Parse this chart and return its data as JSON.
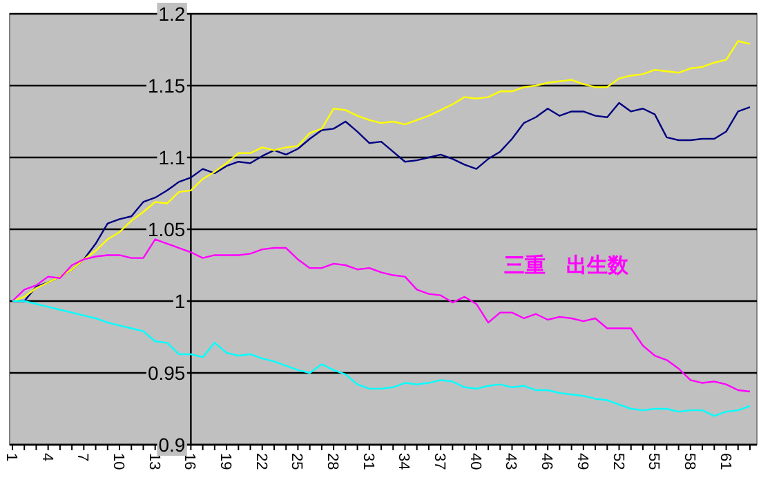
{
  "chart_data": {
    "type": "line",
    "categories": [
      "1",
      null,
      null,
      "4",
      null,
      null,
      "7",
      null,
      null,
      "10",
      null,
      null,
      "13",
      null,
      null,
      "16",
      null,
      null,
      "19",
      null,
      null,
      "22",
      null,
      null,
      "25",
      null,
      null,
      "28",
      null,
      null,
      "31",
      null,
      null,
      "34",
      null,
      null,
      "37",
      null,
      null,
      "40",
      null,
      null,
      "43",
      null,
      null,
      "46",
      null,
      null,
      "49",
      null,
      null,
      "52",
      null,
      null,
      "55",
      null,
      null,
      "58",
      null,
      null,
      "61",
      null,
      null
    ],
    "series": [
      {
        "color": "#000080",
        "values": [
          1.0,
          1.0,
          1.01,
          1.013,
          1.017,
          1.022,
          1.029,
          1.04,
          1.054,
          1.057,
          1.059,
          1.069,
          1.072,
          1.077,
          1.083,
          1.086,
          1.092,
          1.089,
          1.094,
          1.097,
          1.096,
          1.101,
          1.105,
          1.102,
          1.106,
          1.113,
          1.119,
          1.12,
          1.125,
          1.118,
          1.11,
          1.111,
          1.104,
          1.097,
          1.098,
          1.1,
          1.102,
          1.099,
          1.095,
          1.092,
          1.099,
          1.104,
          1.113,
          1.124,
          1.128,
          1.134,
          1.129,
          1.132,
          1.132,
          1.129,
          1.128,
          1.138,
          1.132,
          1.134,
          1.13,
          1.114,
          1.112,
          1.112,
          1.113,
          1.113,
          1.118,
          1.132,
          1.135
        ]
      },
      {
        "color": "#ffff00",
        "values": [
          1.0,
          1.003,
          1.009,
          1.013,
          1.017,
          1.022,
          1.029,
          1.035,
          1.043,
          1.048,
          1.056,
          1.062,
          1.069,
          1.068,
          1.076,
          1.077,
          1.085,
          1.09,
          1.096,
          1.103,
          1.103,
          1.107,
          1.105,
          1.107,
          1.108,
          1.117,
          1.12,
          1.134,
          1.133,
          1.129,
          1.126,
          1.124,
          1.125,
          1.123,
          1.126,
          1.129,
          1.133,
          1.137,
          1.142,
          1.141,
          1.142,
          1.146,
          1.146,
          1.149,
          1.15,
          1.152,
          1.153,
          1.154,
          1.151,
          1.149,
          1.149,
          1.155,
          1.157,
          1.158,
          1.161,
          1.16,
          1.159,
          1.162,
          1.163,
          1.166,
          1.168,
          1.181,
          1.179
        ]
      },
      {
        "color": "#ff00ff",
        "values": [
          1.0,
          1.008,
          1.011,
          1.017,
          1.016,
          1.025,
          1.029,
          1.031,
          1.032,
          1.032,
          1.03,
          1.03,
          1.043,
          1.04,
          1.037,
          1.034,
          1.03,
          1.032,
          1.032,
          1.032,
          1.033,
          1.036,
          1.037,
          1.037,
          1.029,
          1.023,
          1.023,
          1.026,
          1.025,
          1.022,
          1.023,
          1.02,
          1.018,
          1.017,
          1.008,
          1.005,
          1.004,
          0.999,
          1.003,
          0.998,
          0.985,
          0.992,
          0.992,
          0.988,
          0.991,
          0.987,
          0.989,
          0.988,
          0.986,
          0.988,
          0.981,
          0.981,
          0.981,
          0.969,
          0.962,
          0.959,
          0.953,
          0.945,
          0.943,
          0.944,
          0.942,
          0.938,
          0.937
        ]
      },
      {
        "color": "#00ffff",
        "values": [
          1.0,
          1.0,
          0.998,
          0.996,
          0.994,
          0.992,
          0.99,
          0.988,
          0.985,
          0.983,
          0.981,
          0.979,
          0.972,
          0.971,
          0.963,
          0.963,
          0.961,
          0.971,
          0.964,
          0.962,
          0.963,
          0.96,
          0.958,
          0.955,
          0.952,
          0.95,
          0.956,
          0.952,
          0.949,
          0.942,
          0.939,
          0.939,
          0.94,
          0.943,
          0.942,
          0.943,
          0.945,
          0.944,
          0.94,
          0.939,
          0.941,
          0.942,
          0.94,
          0.941,
          0.938,
          0.938,
          0.936,
          0.935,
          0.934,
          0.932,
          0.931,
          0.928,
          0.925,
          0.924,
          0.925,
          0.925,
          0.923,
          0.924,
          0.924,
          0.92,
          0.923,
          0.924,
          0.927
        ]
      }
    ],
    "ylim": [
      0.9,
      1.2
    ],
    "yticks": [
      0.9,
      0.95,
      1,
      1.05,
      1.1,
      1.15,
      1.2
    ],
    "grid": "y",
    "annotations": [
      "三重　出生数"
    ]
  }
}
